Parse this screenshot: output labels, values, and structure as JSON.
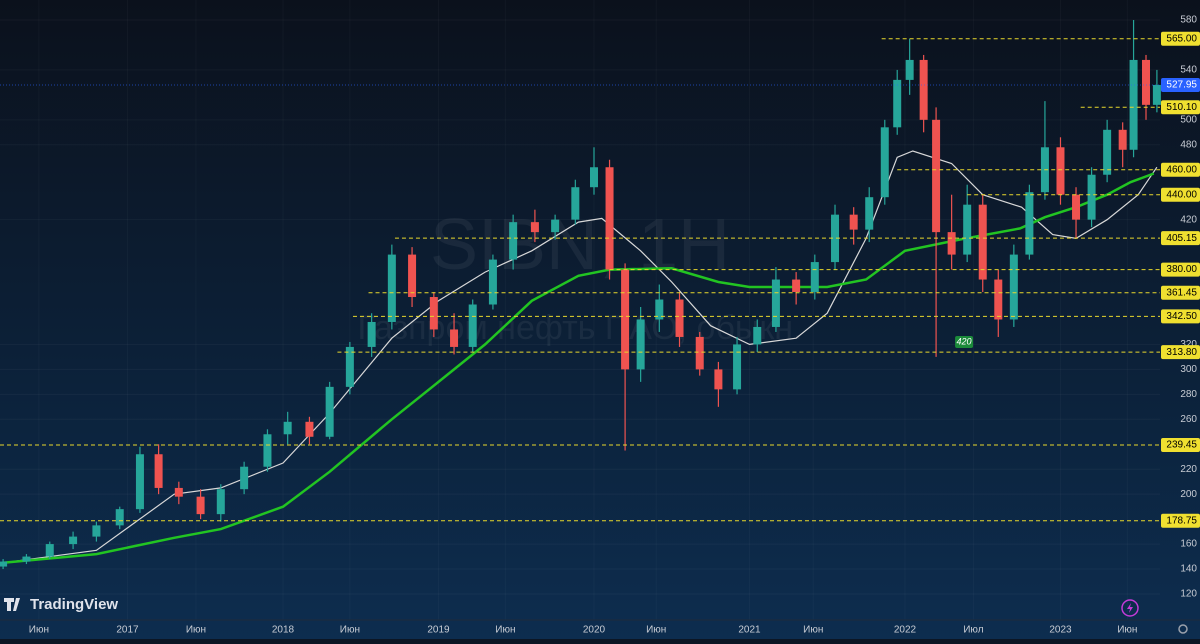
{
  "chart_data": {
    "type": "candlestick",
    "watermark": "SIBN, 1H",
    "watermark_subtitle": "Газпром нефть ПАО, обыкн.",
    "brand": "TradingView",
    "up_color": "#26a69a",
    "down_color": "#ef5350",
    "xlim": [
      2016.18,
      2023.64
    ],
    "ylim": [
      120,
      580
    ],
    "xticks": [
      {
        "value": 2016.43,
        "label": "Июн"
      },
      {
        "value": 2017.0,
        "label": "2017"
      },
      {
        "value": 2017.44,
        "label": "Июн"
      },
      {
        "value": 2018.0,
        "label": "2018"
      },
      {
        "value": 2018.43,
        "label": "Июн"
      },
      {
        "value": 2019.0,
        "label": "2019"
      },
      {
        "value": 2019.43,
        "label": "Июн"
      },
      {
        "value": 2020.0,
        "label": "2020"
      },
      {
        "value": 2020.4,
        "label": "Июн"
      },
      {
        "value": 2021.0,
        "label": "2021"
      },
      {
        "value": 2021.41,
        "label": "Июн"
      },
      {
        "value": 2022.0,
        "label": "2022"
      },
      {
        "value": 2022.44,
        "label": "Июл"
      },
      {
        "value": 2023.0,
        "label": "2023"
      },
      {
        "value": 2023.43,
        "label": "Июн"
      }
    ],
    "yticks": [
      120,
      140,
      160,
      200,
      220,
      260,
      280,
      300,
      320,
      420,
      480,
      500,
      540,
      580
    ],
    "levels": [
      {
        "value": 565,
        "label": "565.00",
        "from": 2021.85
      },
      {
        "value": 510.1,
        "label": "510.10",
        "from": 2023.13
      },
      {
        "value": 460,
        "label": "460.00",
        "from": 2021.95
      },
      {
        "value": 440,
        "label": "440.00",
        "from": 2022.4
      },
      {
        "value": 405.15,
        "label": "405.15",
        "from": 2018.72
      },
      {
        "value": 380,
        "label": "380.00",
        "from": 2020.1
      },
      {
        "value": 361.45,
        "label": "361.45",
        "from": 2018.55
      },
      {
        "value": 342.5,
        "label": "342.50",
        "from": 2018.45
      },
      {
        "value": 313.8,
        "label": "313.80",
        "from": 2018.35
      },
      {
        "value": 239.45,
        "label": "239.45",
        "from": 2016.18
      },
      {
        "value": 178.75,
        "label": "178.75",
        "from": 2016.18
      }
    ],
    "current_price": {
      "value": 527.95,
      "label": "527.95",
      "color": "#2962ff"
    },
    "annotations": [
      {
        "label": "420",
        "x": 2022.38,
        "y": 322,
        "color": "#1b8a3a"
      }
    ],
    "series": [
      {
        "name": "SIBN",
        "x": [
          2016.2,
          2016.35,
          2016.5,
          2016.65,
          2016.8,
          2016.95,
          2017.08,
          2017.2,
          2017.33,
          2017.47,
          2017.6,
          2017.75,
          2017.9,
          2018.03,
          2018.17,
          2018.3,
          2018.43,
          2018.57,
          2018.7,
          2018.83,
          2018.97,
          2019.1,
          2019.22,
          2019.35,
          2019.48,
          2019.62,
          2019.75,
          2019.88,
          2020.0,
          2020.1,
          2020.2,
          2020.3,
          2020.42,
          2020.55,
          2020.68,
          2020.8,
          2020.92,
          2021.05,
          2021.17,
          2021.3,
          2021.42,
          2021.55,
          2021.67,
          2021.77,
          2021.87,
          2021.95,
          2022.03,
          2022.12,
          2022.2,
          2022.3,
          2022.4,
          2022.5,
          2022.6,
          2022.7,
          2022.8,
          2022.9,
          2023.0,
          2023.1,
          2023.2,
          2023.3,
          2023.4,
          2023.47,
          2023.55,
          2023.62
        ],
        "open": [
          142,
          146,
          150,
          160,
          166,
          175,
          188,
          232,
          205,
          198,
          184,
          204,
          222,
          248,
          258,
          246,
          286,
          318,
          338,
          392,
          358,
          332,
          318,
          352,
          388,
          418,
          410,
          420,
          446,
          462,
          380,
          300,
          340,
          356,
          326,
          300,
          284,
          320,
          334,
          372,
          362,
          386,
          424,
          412,
          438,
          494,
          532,
          548,
          500,
          410,
          392,
          432,
          372,
          340,
          392,
          442,
          478,
          440,
          420,
          456,
          492,
          476,
          548,
          512
        ],
        "high": [
          148,
          152,
          162,
          170,
          178,
          190,
          238,
          240,
          210,
          204,
          208,
          226,
          252,
          266,
          262,
          290,
          322,
          345,
          400,
          398,
          362,
          345,
          356,
          392,
          424,
          428,
          424,
          452,
          478,
          468,
          385,
          350,
          368,
          362,
          330,
          306,
          326,
          340,
          382,
          378,
          392,
          432,
          430,
          446,
          500,
          540,
          565,
          552,
          510,
          440,
          448,
          440,
          380,
          400,
          448,
          515,
          486,
          446,
          462,
          500,
          498,
          580,
          552,
          540
        ],
        "low": [
          140,
          144,
          148,
          156,
          162,
          172,
          185,
          200,
          192,
          180,
          178,
          200,
          218,
          240,
          240,
          244,
          280,
          310,
          332,
          350,
          326,
          312,
          314,
          348,
          380,
          402,
          404,
          416,
          440,
          372,
          235,
          290,
          330,
          318,
          295,
          270,
          280,
          314,
          330,
          352,
          356,
          380,
          400,
          402,
          432,
          488,
          520,
          490,
          310,
          380,
          386,
          362,
          326,
          334,
          388,
          436,
          432,
          405,
          414,
          450,
          462,
          470,
          500,
          506
        ],
        "close": [
          146,
          150,
          160,
          166,
          175,
          188,
          232,
          205,
          198,
          184,
          204,
          222,
          248,
          258,
          246,
          286,
          318,
          338,
          392,
          358,
          332,
          318,
          352,
          388,
          418,
          410,
          420,
          446,
          462,
          380,
          300,
          340,
          356,
          326,
          300,
          284,
          320,
          334,
          372,
          362,
          386,
          424,
          412,
          438,
          494,
          532,
          548,
          500,
          410,
          392,
          432,
          372,
          340,
          392,
          442,
          478,
          440,
          420,
          456,
          492,
          476,
          548,
          512,
          527.95
        ]
      }
    ],
    "moving_averages": [
      {
        "color": "#d8d8d8",
        "x": [
          2016.2,
          2016.8,
          2017.3,
          2017.6,
          2018.0,
          2018.3,
          2018.7,
          2019.0,
          2019.3,
          2019.6,
          2019.9,
          2020.05,
          2020.3,
          2020.5,
          2020.75,
          2021.0,
          2021.3,
          2021.5,
          2021.75,
          2021.95,
          2022.05,
          2022.3,
          2022.5,
          2022.75,
          2022.95,
          2023.1,
          2023.3,
          2023.5,
          2023.62
        ],
        "values": [
          145,
          155,
          200,
          205,
          225,
          265,
          325,
          355,
          378,
          395,
          418,
          421,
          395,
          370,
          335,
          320,
          325,
          345,
          405,
          470,
          475,
          465,
          440,
          430,
          408,
          405,
          420,
          440,
          462
        ]
      },
      {
        "color": "#22c422",
        "x": [
          2016.2,
          2016.8,
          2017.3,
          2017.6,
          2018.0,
          2018.3,
          2018.7,
          2019.0,
          2019.3,
          2019.6,
          2019.9,
          2020.1,
          2020.5,
          2020.8,
          2021.0,
          2021.5,
          2021.75,
          2022.0,
          2022.35,
          2022.74,
          2022.9,
          2023.1,
          2023.3,
          2023.45,
          2023.6
        ],
        "values": [
          145,
          152,
          165,
          172,
          190,
          218,
          260,
          290,
          320,
          355,
          375,
          380,
          381,
          370,
          366,
          366,
          372,
          395,
          404,
          413,
          422,
          430,
          440,
          450,
          457
        ]
      }
    ]
  }
}
